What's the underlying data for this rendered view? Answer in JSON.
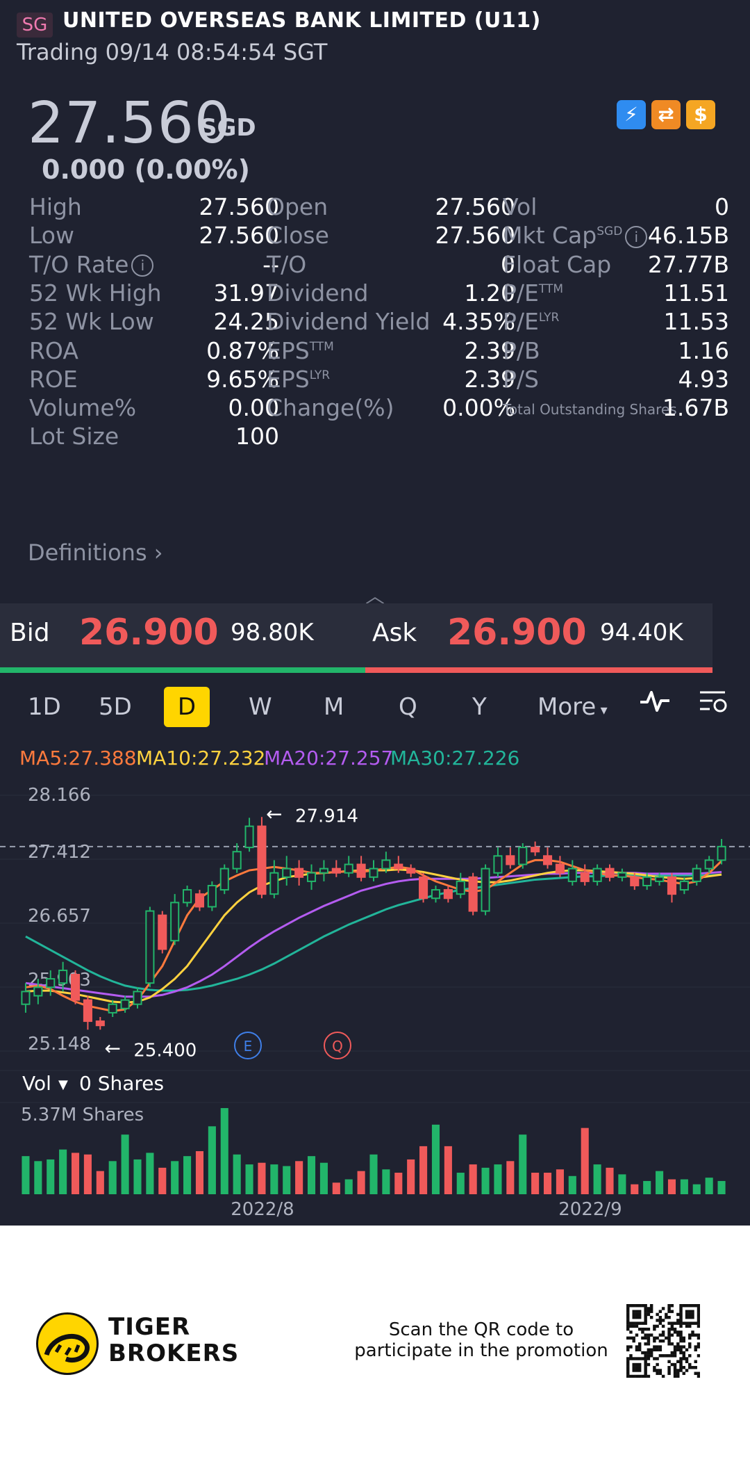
{
  "header": {
    "market_badge": "SG",
    "title": "UNITED OVERSEAS BANK LIMITED (U11)",
    "status": "Trading 09/14 08:54:54 SGT"
  },
  "quote": {
    "price": "27.560",
    "currency": "SGD",
    "change": "0.000 (0.00%)",
    "badges": [
      {
        "icon": "lightning-level1-icon",
        "color": "#2f8cf0"
      },
      {
        "icon": "orange-swap-icon",
        "color": "#f08a24"
      },
      {
        "icon": "dollar-icon",
        "color": "#f5a623"
      }
    ]
  },
  "stats": {
    "rows": [
      {
        "l1": "High",
        "v1": "27.560",
        "l2": "Open",
        "v2": "27.560",
        "l3": "Vol",
        "v3": "0"
      },
      {
        "l1": "Low",
        "v1": "27.560",
        "l2": "Close",
        "v2": "27.560",
        "l3": "Mkt Cap",
        "l3sup": "SGD",
        "v3": "46.15B"
      },
      {
        "l1": "T/O Rate",
        "v1": "--",
        "l2": "T/O",
        "v2": "0",
        "l3": "Float Cap",
        "v3": "27.77B"
      },
      {
        "l1": "52 Wk High",
        "v1": "31.97",
        "l2": "Dividend",
        "v2": "1.20",
        "l3": "P/E",
        "l3sup": "TTM",
        "v3": "11.51"
      },
      {
        "l1": "52 Wk Low",
        "v1": "24.25",
        "l2": "Dividend Yield",
        "v2": "4.35%",
        "l3": "P/E",
        "l3sup": "LYR",
        "v3": "11.53"
      },
      {
        "l1": "ROA",
        "v1": "0.87%",
        "l2": "EPS",
        "l2sup": "TTM",
        "v2": "2.39",
        "l3": "P/B",
        "v3": "1.16"
      },
      {
        "l1": "ROE",
        "v1": "9.65%",
        "l2": "EPS",
        "l2sup": "LYR",
        "v2": "2.39",
        "l3": "P/S",
        "v3": "4.93"
      },
      {
        "l1": "Volume%",
        "v1": "0.00",
        "l2": "Change(%)",
        "v2": "0.00%",
        "l3": "Total Outstanding Shares",
        "v3": "1.67B"
      },
      {
        "l1": "Lot Size",
        "v1": "100"
      }
    ],
    "definitions": "Definitions"
  },
  "orderbook": {
    "bid_label": "Bid",
    "bid_price": "26.900",
    "bid_qty": "98.80K",
    "ask_label": "Ask",
    "ask_price": "26.900",
    "ask_qty": "94.40K"
  },
  "tabs": [
    "1D",
    "5D",
    "D",
    "W",
    "M",
    "Q",
    "Y",
    "More"
  ],
  "active_tab": "D",
  "ma_legend": [
    {
      "text": "MA5:27.388",
      "color": "#ff7a3d"
    },
    {
      "text": "MA10:27.232",
      "color": "#ffd23f"
    },
    {
      "text": "MA20:27.257",
      "color": "#b45cf0"
    },
    {
      "text": "MA30:27.226",
      "color": "#22b59a"
    }
  ],
  "chart_data": {
    "type": "candlestick",
    "y_ticks": [
      "28.166",
      "27.412",
      "26.657",
      "25.903",
      "25.148"
    ],
    "ylim": [
      25.148,
      28.166
    ],
    "last_price_line": 27.56,
    "high_marker": "27.914",
    "low_marker": "25.400",
    "event_markers": [
      "E",
      "Q"
    ],
    "x_labels": [
      "2022/8",
      "2022/9"
    ],
    "candles": [
      [
        25.7,
        25.85,
        25.6,
        25.95
      ],
      [
        25.8,
        25.9,
        25.7,
        26.0
      ],
      [
        25.9,
        26.0,
        25.8,
        26.1
      ],
      [
        25.95,
        26.1,
        25.85,
        26.2
      ],
      [
        26.05,
        25.75,
        25.7,
        26.1
      ],
      [
        25.75,
        25.5,
        25.4,
        25.8
      ],
      [
        25.5,
        25.45,
        25.4,
        25.55
      ],
      [
        25.6,
        25.7,
        25.55,
        25.75
      ],
      [
        25.65,
        25.75,
        25.6,
        25.8
      ],
      [
        25.7,
        25.85,
        25.65,
        25.9
      ],
      [
        25.95,
        26.8,
        25.9,
        26.85
      ],
      [
        26.75,
        26.35,
        26.3,
        26.8
      ],
      [
        26.45,
        26.9,
        26.4,
        27.0
      ],
      [
        26.9,
        27.05,
        26.85,
        27.1
      ],
      [
        27.0,
        26.85,
        26.8,
        27.05
      ],
      [
        26.85,
        27.1,
        26.8,
        27.15
      ],
      [
        27.05,
        27.3,
        27.0,
        27.35
      ],
      [
        27.3,
        27.5,
        27.25,
        27.6
      ],
      [
        27.55,
        27.8,
        27.5,
        27.9
      ],
      [
        27.8,
        27.0,
        26.95,
        27.91
      ],
      [
        27.0,
        27.25,
        26.95,
        27.4
      ],
      [
        27.2,
        27.3,
        27.1,
        27.45
      ],
      [
        27.3,
        27.2,
        27.1,
        27.4
      ],
      [
        27.15,
        27.25,
        27.05,
        27.35
      ],
      [
        27.25,
        27.3,
        27.15,
        27.4
      ],
      [
        27.3,
        27.25,
        27.2,
        27.4
      ],
      [
        27.25,
        27.35,
        27.2,
        27.45
      ],
      [
        27.35,
        27.2,
        27.15,
        27.45
      ],
      [
        27.2,
        27.3,
        27.15,
        27.4
      ],
      [
        27.3,
        27.4,
        27.25,
        27.5
      ],
      [
        27.35,
        27.3,
        27.25,
        27.45
      ],
      [
        27.3,
        27.25,
        27.2,
        27.35
      ],
      [
        27.2,
        26.95,
        26.9,
        27.25
      ],
      [
        26.95,
        27.05,
        26.9,
        27.1
      ],
      [
        27.05,
        26.95,
        26.9,
        27.1
      ],
      [
        27.0,
        27.15,
        26.95,
        27.25
      ],
      [
        27.2,
        26.8,
        26.75,
        27.25
      ],
      [
        26.8,
        27.3,
        26.75,
        27.35
      ],
      [
        27.25,
        27.45,
        27.2,
        27.55
      ],
      [
        27.45,
        27.35,
        27.3,
        27.55
      ],
      [
        27.35,
        27.55,
        27.3,
        27.6
      ],
      [
        27.55,
        27.5,
        27.45,
        27.62
      ],
      [
        27.45,
        27.35,
        27.3,
        27.55
      ],
      [
        27.35,
        27.25,
        27.2,
        27.45
      ],
      [
        27.15,
        27.3,
        27.1,
        27.4
      ],
      [
        27.25,
        27.15,
        27.1,
        27.35
      ],
      [
        27.15,
        27.3,
        27.1,
        27.35
      ],
      [
        27.3,
        27.2,
        27.15,
        27.35
      ],
      [
        27.2,
        27.25,
        27.15,
        27.3
      ],
      [
        27.2,
        27.1,
        27.05,
        27.25
      ],
      [
        27.1,
        27.2,
        27.05,
        27.25
      ],
      [
        27.15,
        27.2,
        27.1,
        27.25
      ],
      [
        27.2,
        27.0,
        26.9,
        27.25
      ],
      [
        27.05,
        27.15,
        27.0,
        27.2
      ],
      [
        27.15,
        27.3,
        27.1,
        27.35
      ],
      [
        27.3,
        27.4,
        27.25,
        27.45
      ],
      [
        27.4,
        27.56,
        27.35,
        27.65
      ]
    ],
    "ma5": [
      25.9,
      25.92,
      25.88,
      25.8,
      25.73,
      25.68,
      25.65,
      25.62,
      25.64,
      25.75,
      25.95,
      26.15,
      26.45,
      26.75,
      26.95,
      27.05,
      27.15,
      27.22,
      27.28,
      27.3,
      27.32,
      27.3,
      27.28,
      27.25,
      27.25,
      27.26,
      27.27,
      27.26,
      27.28,
      27.3,
      27.32,
      27.3,
      27.22,
      27.15,
      27.1,
      27.05,
      27.03,
      27.05,
      27.15,
      27.25,
      27.35,
      27.4,
      27.4,
      27.38,
      27.33,
      27.28,
      27.25,
      27.22,
      27.22,
      27.2,
      27.18,
      27.17,
      27.14,
      27.12,
      27.15,
      27.25,
      27.39
    ],
    "ma10": [
      25.85,
      25.86,
      25.86,
      25.84,
      25.82,
      25.79,
      25.76,
      25.73,
      25.72,
      25.73,
      25.78,
      25.88,
      26.0,
      26.15,
      26.35,
      26.55,
      26.75,
      26.9,
      27.02,
      27.1,
      27.15,
      27.2,
      27.22,
      27.24,
      27.25,
      27.26,
      27.27,
      27.28,
      27.28,
      27.28,
      27.29,
      27.28,
      27.26,
      27.23,
      27.2,
      27.17,
      27.15,
      27.14,
      27.14,
      27.16,
      27.19,
      27.22,
      27.25,
      27.27,
      27.28,
      27.28,
      27.27,
      27.26,
      27.25,
      27.24,
      27.22,
      27.2,
      27.19,
      27.18,
      27.19,
      27.21,
      27.23
    ],
    "ma20": [
      25.95,
      25.93,
      25.91,
      25.89,
      25.87,
      25.85,
      25.83,
      25.81,
      25.79,
      25.79,
      25.79,
      25.81,
      25.85,
      25.9,
      25.97,
      26.05,
      26.15,
      26.26,
      26.37,
      26.47,
      26.56,
      26.64,
      26.72,
      26.79,
      26.86,
      26.92,
      26.98,
      27.04,
      27.08,
      27.12,
      27.15,
      27.17,
      27.18,
      27.18,
      27.18,
      27.18,
      27.18,
      27.19,
      27.2,
      27.21,
      27.22,
      27.23,
      27.24,
      27.24,
      27.25,
      27.25,
      27.25,
      27.25,
      27.25,
      27.25,
      27.24,
      27.24,
      27.24,
      27.24,
      27.24,
      27.25,
      27.26
    ],
    "ma30": [
      26.5,
      26.42,
      26.34,
      26.26,
      26.18,
      26.1,
      26.03,
      25.97,
      25.92,
      25.89,
      25.87,
      25.86,
      25.86,
      25.87,
      25.89,
      25.92,
      25.96,
      26.0,
      26.05,
      26.11,
      26.18,
      26.26,
      26.34,
      26.42,
      26.5,
      26.57,
      26.64,
      26.7,
      26.76,
      26.82,
      26.87,
      26.91,
      26.95,
      26.99,
      27.02,
      27.05,
      27.07,
      27.09,
      27.11,
      27.13,
      27.15,
      27.17,
      27.18,
      27.19,
      27.2,
      27.21,
      27.21,
      27.22,
      27.22,
      27.22,
      27.22,
      27.22,
      27.22,
      27.22,
      27.22,
      27.22,
      27.23
    ],
    "volume": {
      "label": "Vol",
      "current": "0 Shares",
      "max_label": "5.37M Shares",
      "values": [
        2.3,
        2.0,
        2.1,
        2.7,
        2.5,
        2.4,
        1.4,
        2.0,
        3.6,
        2.1,
        2.5,
        1.6,
        2.0,
        2.3,
        2.6,
        4.1,
        5.2,
        2.4,
        1.8,
        1.9,
        1.8,
        1.7,
        2.0,
        2.3,
        1.9,
        0.7,
        0.9,
        1.4,
        2.4,
        1.5,
        1.3,
        2.1,
        2.9,
        4.2,
        2.9,
        1.3,
        1.8,
        1.6,
        1.8,
        2.0,
        3.6,
        1.3,
        1.3,
        1.5,
        1.1,
        4.0,
        1.8,
        1.6,
        1.2,
        0.6,
        0.8,
        1.4,
        0.9,
        0.9,
        0.6,
        1.0,
        0.8
      ]
    }
  },
  "footer": {
    "brand_line1": "TIGER",
    "brand_line2": "BROKERS",
    "scan_line1": "Scan the QR code to",
    "scan_line2": "participate in the promotion"
  },
  "colors": {
    "up": "#22b56a",
    "down": "#f05a5a",
    "background": "#1f2230",
    "accent": "#ffd500"
  }
}
